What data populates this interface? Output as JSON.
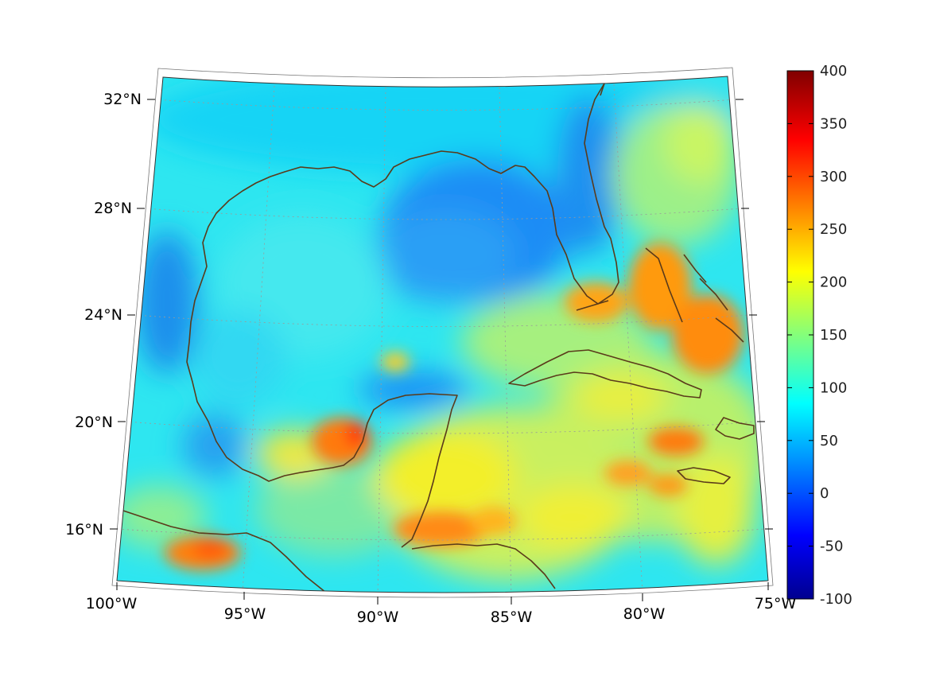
{
  "map": {
    "lon_labels": [
      "100°W",
      "95°W",
      "90°W",
      "85°W",
      "80°W",
      "75°W"
    ],
    "lat_labels": [
      "16°N",
      "20°N",
      "24°N",
      "28°N",
      "32°N"
    ],
    "colorbar": {
      "ticks": [
        "400",
        "350",
        "300",
        "250",
        "200",
        "150",
        "100",
        "50",
        "0",
        "-50",
        "-100"
      ],
      "min": -100,
      "max": 400,
      "colormap": "jet"
    },
    "colors": {
      "coastline": "#5a3a1a",
      "graticule": "#9a9a9a"
    }
  }
}
